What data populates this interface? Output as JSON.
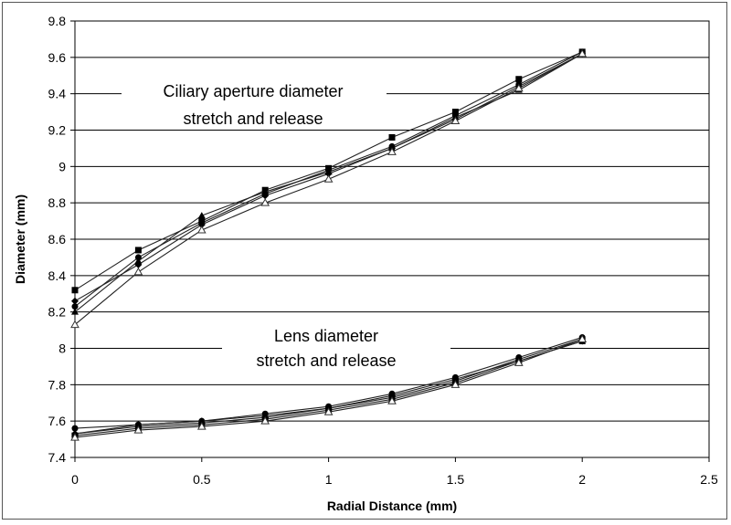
{
  "chart_data": {
    "type": "line",
    "xlabel": "Radial Distance (mm)",
    "ylabel": "Diameter (mm)",
    "xlim": [
      0,
      2.5
    ],
    "ylim": [
      7.4,
      9.8
    ],
    "x_ticks": [
      "0",
      "0.5",
      "1",
      "1.5",
      "2",
      "2.5"
    ],
    "y_ticks": [
      "7.4",
      "7.6",
      "7.8",
      "8",
      "8.2",
      "8.4",
      "8.6",
      "8.8",
      "9",
      "9.2",
      "9.4",
      "9.6",
      "9.8"
    ],
    "grid": "horizontal",
    "x": [
      0,
      0.25,
      0.5,
      0.75,
      1,
      1.25,
      1.5,
      1.75,
      2
    ],
    "annotations": [
      {
        "lines": [
          "Ciliary aperture diameter",
          "stretch and release"
        ]
      },
      {
        "lines": [
          "Lens diameter",
          "stretch and release"
        ]
      }
    ],
    "series": [
      {
        "group": "ciliary",
        "marker": "square",
        "values": [
          8.32,
          8.54,
          8.7,
          8.87,
          8.99,
          9.16,
          9.3,
          9.48,
          9.63
        ]
      },
      {
        "group": "ciliary",
        "marker": "circle",
        "values": [
          8.23,
          8.5,
          8.69,
          8.85,
          8.98,
          9.11,
          9.28,
          9.45,
          9.63
        ]
      },
      {
        "group": "ciliary",
        "marker": "triangle",
        "values": [
          8.2,
          8.48,
          8.73,
          8.86,
          8.97,
          9.1,
          9.27,
          9.42,
          9.62
        ]
      },
      {
        "group": "ciliary",
        "marker": "diamond",
        "values": [
          8.26,
          8.46,
          8.68,
          8.84,
          8.96,
          9.1,
          9.26,
          9.44,
          9.62
        ]
      },
      {
        "group": "ciliary",
        "marker": "open-triangle",
        "values": [
          8.13,
          8.42,
          8.65,
          8.8,
          8.93,
          9.08,
          9.25,
          9.43,
          9.62
        ]
      },
      {
        "group": "lens",
        "marker": "circle",
        "values": [
          7.56,
          7.58,
          7.6,
          7.64,
          7.68,
          7.75,
          7.84,
          7.95,
          8.06
        ]
      },
      {
        "group": "lens",
        "marker": "triangle",
        "values": [
          7.53,
          7.58,
          7.6,
          7.63,
          7.67,
          7.73,
          7.82,
          7.94,
          8.05
        ]
      },
      {
        "group": "lens",
        "marker": "square",
        "values": [
          7.52,
          7.56,
          7.58,
          7.61,
          7.66,
          7.72,
          7.81,
          7.93,
          8.04
        ]
      },
      {
        "group": "lens",
        "marker": "diamond",
        "values": [
          7.53,
          7.57,
          7.59,
          7.62,
          7.67,
          7.74,
          7.83,
          7.93,
          8.04
        ]
      },
      {
        "group": "lens",
        "marker": "open-triangle",
        "values": [
          7.51,
          7.55,
          7.57,
          7.6,
          7.65,
          7.71,
          7.8,
          7.92,
          8.05
        ]
      }
    ]
  }
}
